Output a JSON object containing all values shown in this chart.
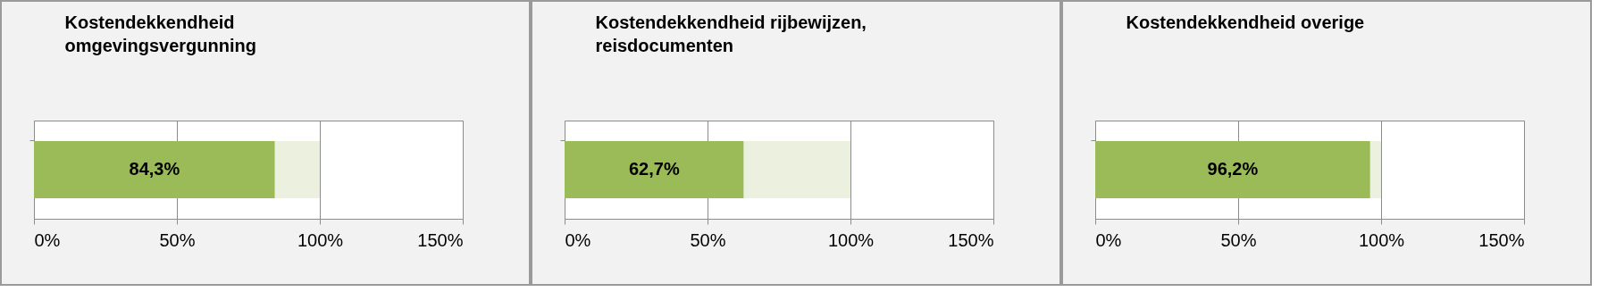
{
  "chart_data": [
    {
      "type": "bar",
      "title": "Kostendekkendheid omgevingsvergunning",
      "orientation": "horizontal",
      "stacked": true,
      "categories": [
        null
      ],
      "series": [
        {
          "color": "#9bbb59",
          "values": [
            84.3
          ],
          "value_labels": [
            "84,3%"
          ]
        },
        {
          "color": "#ebf1de",
          "values": [
            15.7
          ]
        }
      ],
      "xlim": [
        0,
        150
      ],
      "xticks": [
        {
          "value": 0,
          "label": "0%"
        },
        {
          "value": 50,
          "label": "50%"
        },
        {
          "value": 100,
          "label": "100%"
        },
        {
          "value": 150,
          "label": "150%"
        }
      ],
      "grid": "x",
      "legend": false
    },
    {
      "type": "bar",
      "title": "Kostendekkendheid rijbewijzen, reisdocumenten",
      "orientation": "horizontal",
      "stacked": true,
      "categories": [
        null
      ],
      "series": [
        {
          "color": "#9bbb59",
          "values": [
            62.7
          ],
          "value_labels": [
            "62,7%"
          ]
        },
        {
          "color": "#ebf1de",
          "values": [
            37.3
          ]
        }
      ],
      "xlim": [
        0,
        150
      ],
      "xticks": [
        {
          "value": 0,
          "label": "0%"
        },
        {
          "value": 50,
          "label": "50%"
        },
        {
          "value": 100,
          "label": "100%"
        },
        {
          "value": 150,
          "label": "150%"
        }
      ],
      "grid": "x",
      "legend": false
    },
    {
      "type": "bar",
      "title": "Kostendekkendheid overige",
      "orientation": "horizontal",
      "stacked": true,
      "categories": [
        null
      ],
      "series": [
        {
          "color": "#9bbb59",
          "values": [
            96.2
          ],
          "value_labels": [
            "96,2%"
          ]
        },
        {
          "color": "#ebf1de",
          "values": [
            3.8
          ]
        }
      ],
      "xlim": [
        0,
        150
      ],
      "xticks": [
        {
          "value": 0,
          "label": "0%"
        },
        {
          "value": 50,
          "label": "50%"
        },
        {
          "value": 100,
          "label": "100%"
        },
        {
          "value": 150,
          "label": "150%"
        }
      ],
      "grid": "x",
      "legend": false
    }
  ]
}
